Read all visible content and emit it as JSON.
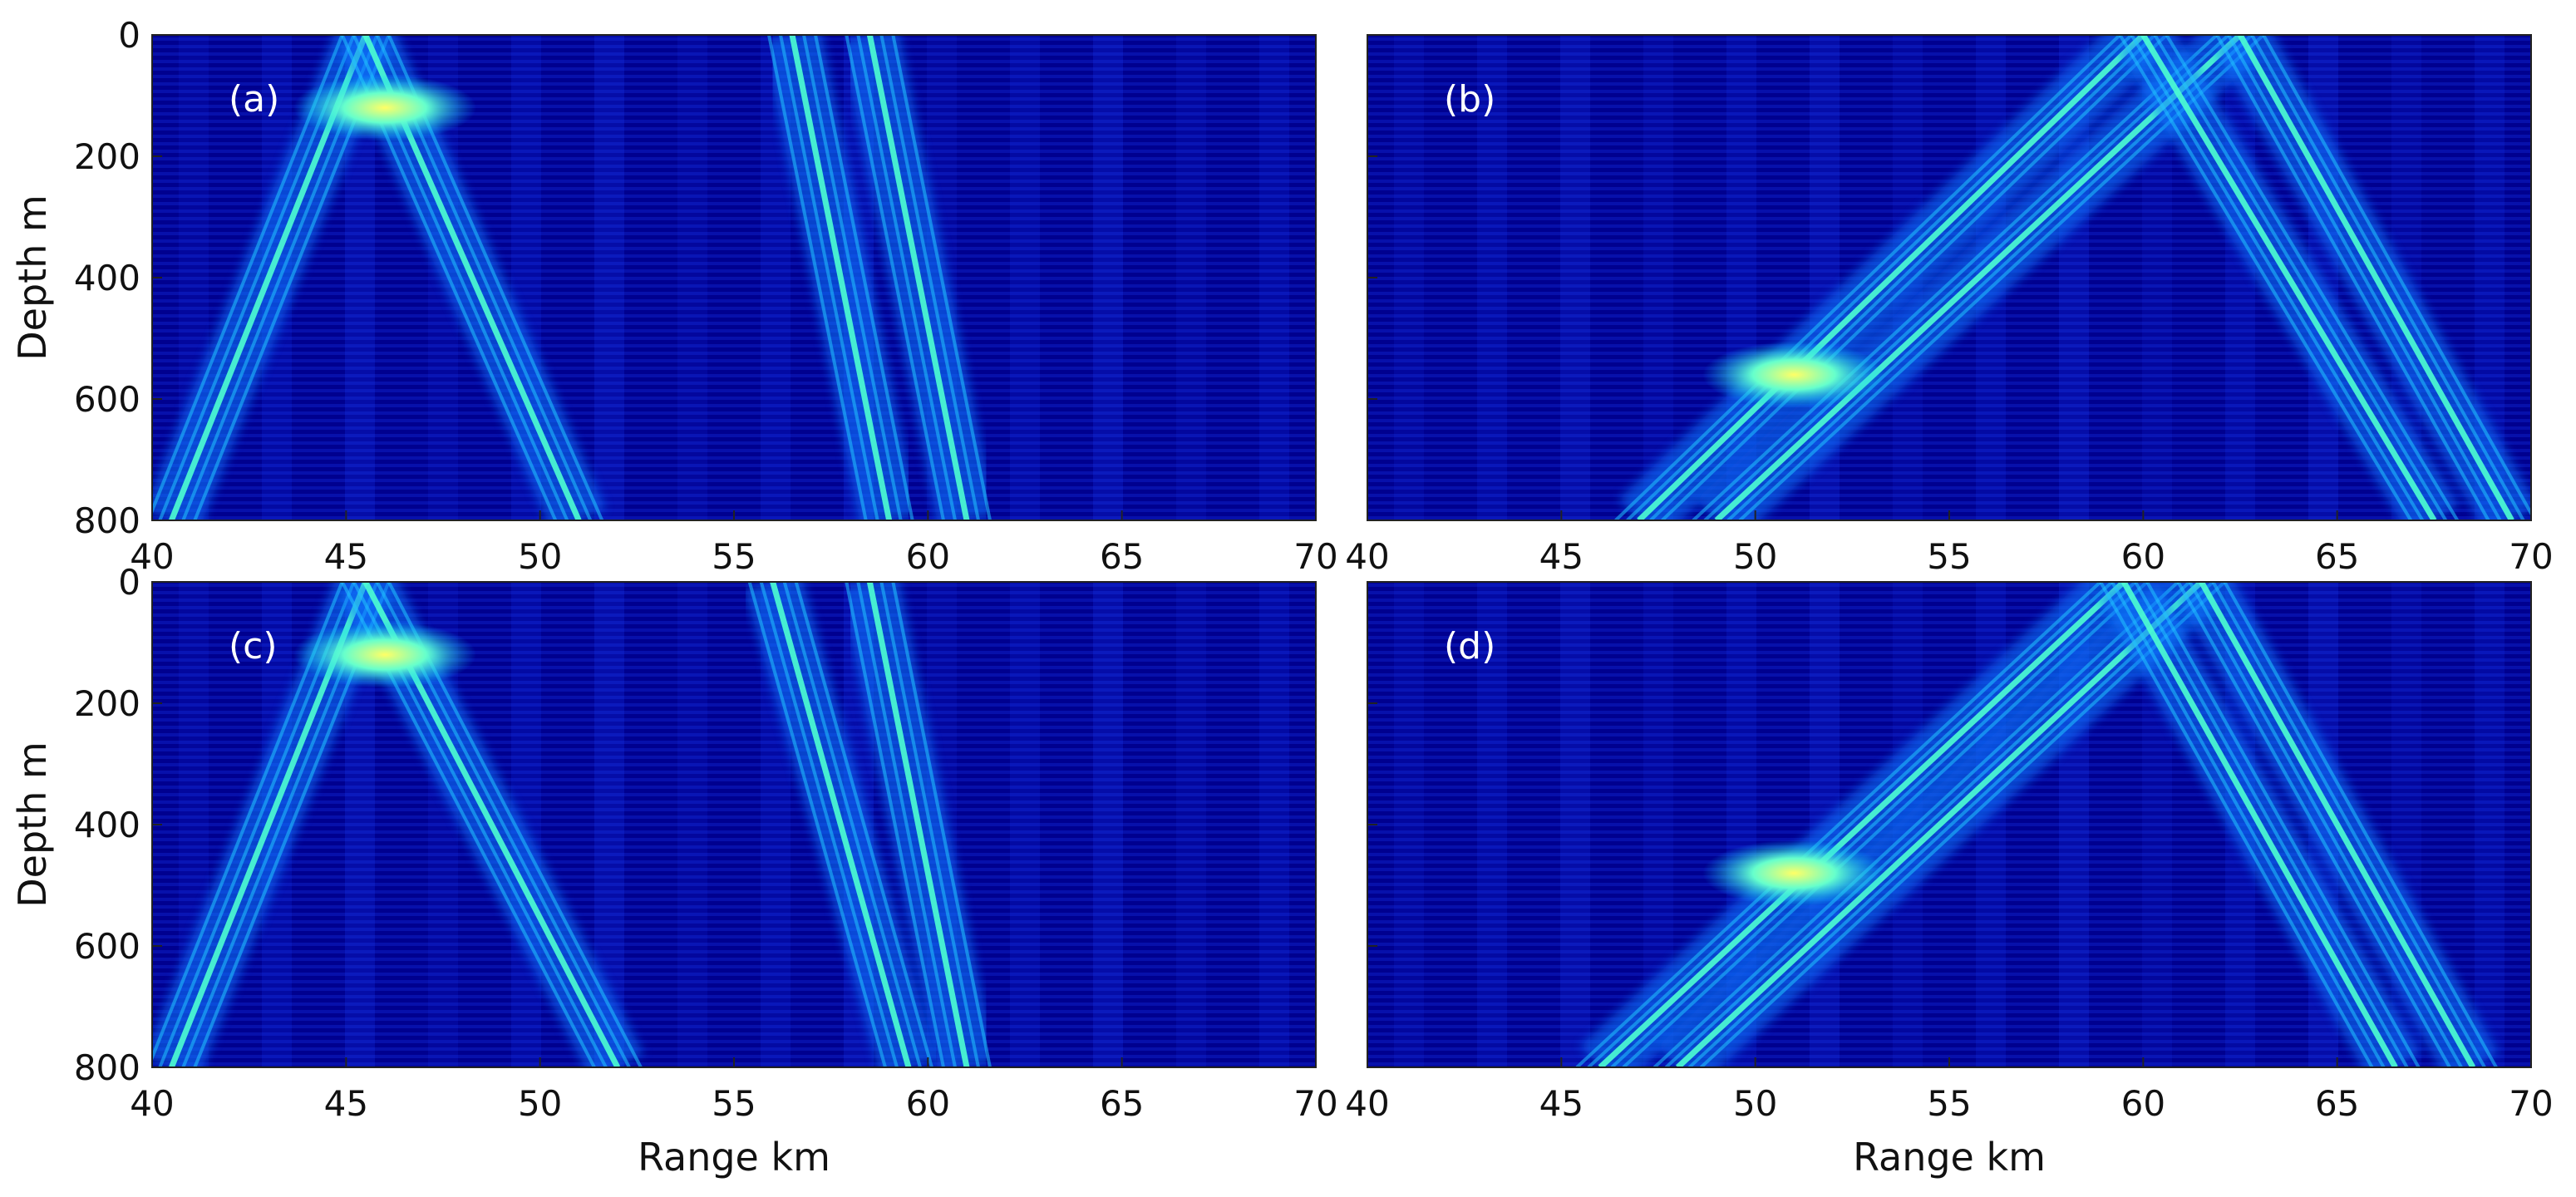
{
  "chart_data": [
    {
      "type": "heatmap",
      "panel_label": "(a)",
      "xlabel": "",
      "ylabel": "Depth m",
      "xlim": [
        40,
        70
      ],
      "ylim": [
        800,
        0
      ],
      "x_ticks": [
        40,
        45,
        50,
        55,
        60,
        65,
        70
      ],
      "y_ticks": [
        0,
        200,
        400,
        600,
        800
      ],
      "colormap": "jet",
      "beams": [
        {
          "x_surface": 45.5,
          "x_bottom": 40.5
        },
        {
          "x_surface": 45.5,
          "x_bottom": 51.0
        },
        {
          "x_surface": 58.5,
          "x_bottom": 61.0
        },
        {
          "x_surface": 56.5,
          "x_bottom": 59.0
        }
      ],
      "hotspot": {
        "x": 46.0,
        "y": 120
      }
    },
    {
      "type": "heatmap",
      "panel_label": "(b)",
      "xlabel": "",
      "ylabel": "",
      "xlim": [
        40,
        70
      ],
      "ylim": [
        800,
        0
      ],
      "x_ticks": [
        40,
        45,
        50,
        55,
        60,
        65,
        70
      ],
      "y_ticks": [
        0,
        200,
        400,
        600,
        800
      ],
      "colormap": "jet",
      "beams": [
        {
          "x_surface": 60.0,
          "x_bottom": 47.0
        },
        {
          "x_surface": 62.5,
          "x_bottom": 49.0
        },
        {
          "x_surface": 60.0,
          "x_bottom": 67.5
        },
        {
          "x_surface": 62.5,
          "x_bottom": 69.5
        }
      ],
      "hotspot": {
        "x": 51.0,
        "y": 560
      }
    },
    {
      "type": "heatmap",
      "panel_label": "(c)",
      "xlabel": "Range km",
      "ylabel": "Depth m",
      "xlim": [
        40,
        70
      ],
      "ylim": [
        800,
        0
      ],
      "x_ticks": [
        40,
        45,
        50,
        55,
        60,
        65,
        70
      ],
      "y_ticks": [
        0,
        200,
        400,
        600,
        800
      ],
      "colormap": "jet",
      "beams": [
        {
          "x_surface": 45.5,
          "x_bottom": 40.5
        },
        {
          "x_surface": 45.5,
          "x_bottom": 52.0
        },
        {
          "x_surface": 58.5,
          "x_bottom": 61.0
        },
        {
          "x_surface": 56.0,
          "x_bottom": 59.5
        }
      ],
      "hotspot": {
        "x": 46.0,
        "y": 120
      }
    },
    {
      "type": "heatmap",
      "panel_label": "(d)",
      "xlabel": "Range km",
      "ylabel": "",
      "xlim": [
        40,
        70
      ],
      "ylim": [
        800,
        0
      ],
      "x_ticks": [
        40,
        45,
        50,
        55,
        60,
        65,
        70
      ],
      "y_ticks": [
        0,
        200,
        400,
        600,
        800
      ],
      "colormap": "jet",
      "beams": [
        {
          "x_surface": 59.5,
          "x_bottom": 46.0
        },
        {
          "x_surface": 61.5,
          "x_bottom": 48.0
        },
        {
          "x_surface": 59.5,
          "x_bottom": 66.5
        },
        {
          "x_surface": 61.5,
          "x_bottom": 68.5
        }
      ],
      "hotspot": {
        "x": 51.0,
        "y": 480
      }
    }
  ]
}
